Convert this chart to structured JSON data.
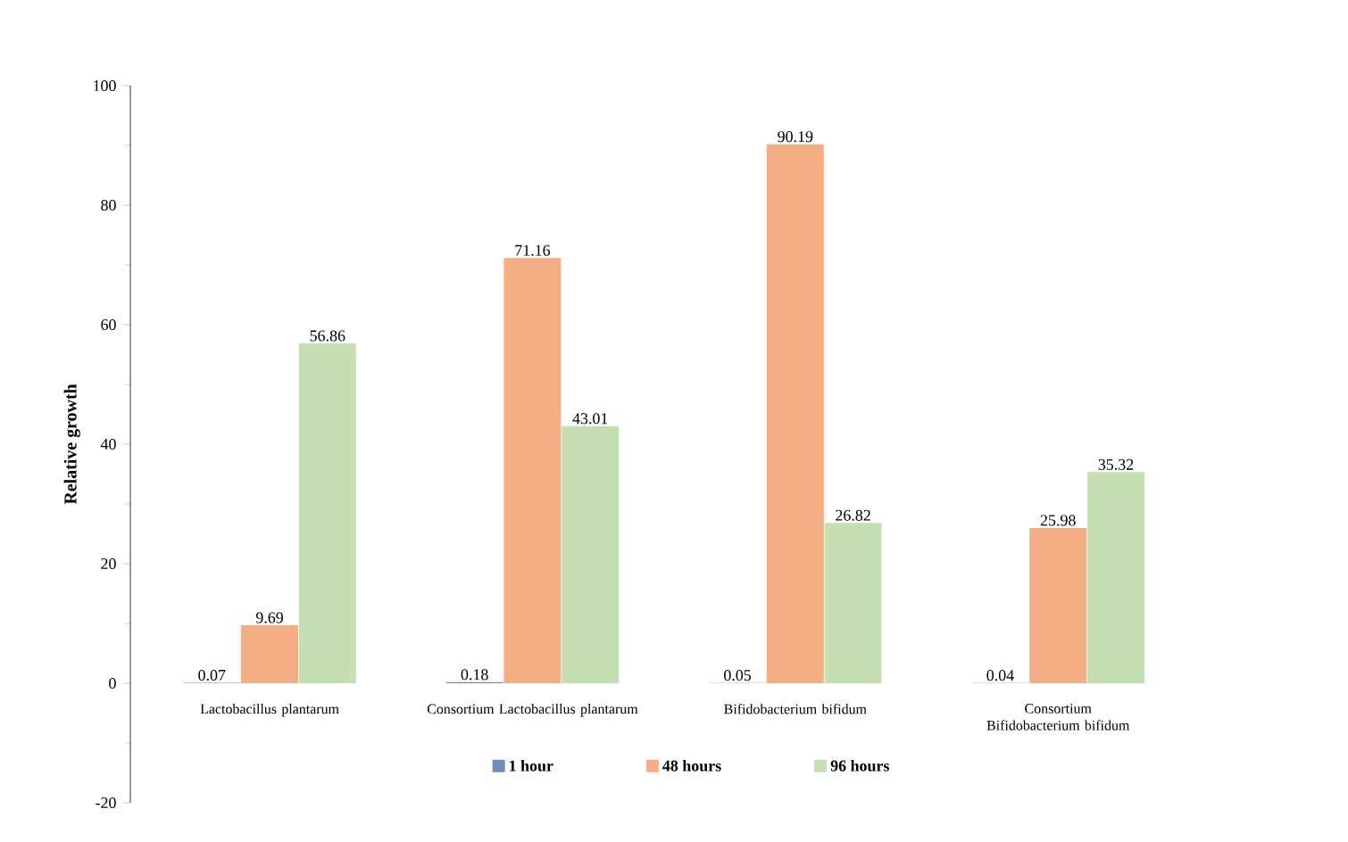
{
  "chart_data": {
    "type": "bar",
    "ylabel": "Relative growth",
    "categories": [
      "Lactobacillus plantarum",
      "Consortium  Lactobacillus plantarum",
      "Bifidobacterium bifidum",
      "Consortium  Bifidobacterium bifidum"
    ],
    "series": [
      {
        "name": "1 hour",
        "color": "#6f8fb8",
        "values": [
          0.07,
          0.18,
          0.05,
          0.04
        ]
      },
      {
        "name": "48 hours",
        "color": "#f4ae84",
        "values": [
          9.69,
          71.16,
          90.19,
          25.98
        ]
      },
      {
        "name": "96 hours",
        "color": "#c5dfb2",
        "values": [
          56.86,
          43.01,
          26.82,
          35.32
        ]
      }
    ],
    "ylim": [
      -20,
      100
    ],
    "yticks": [
      -20,
      0,
      20,
      40,
      60,
      80,
      100
    ],
    "data_labels": true,
    "legend": "bottom",
    "grid": false
  }
}
